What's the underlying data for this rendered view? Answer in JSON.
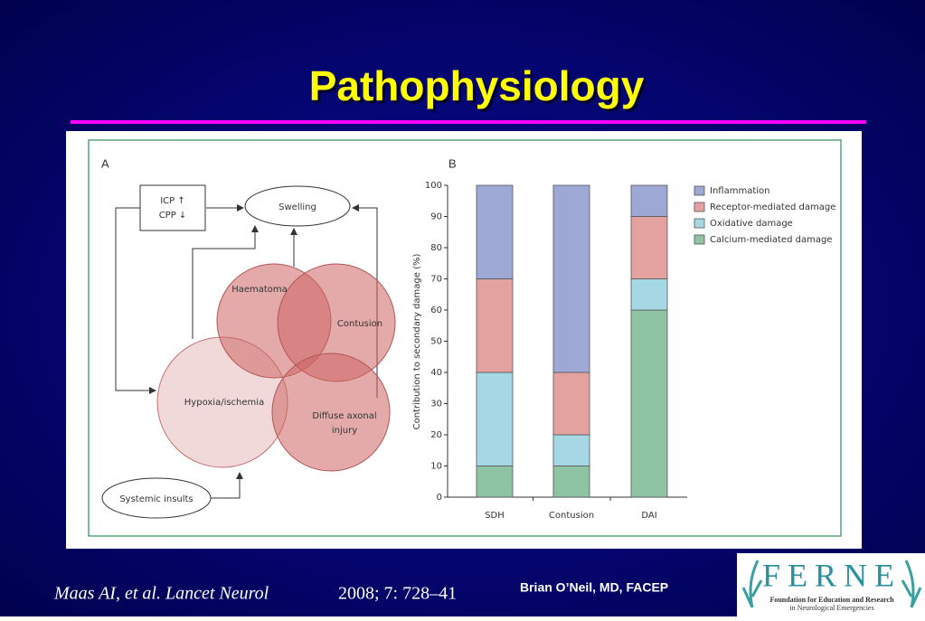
{
  "slide_title": "Pathophysiology",
  "panel_a": {
    "label": "A",
    "nodes": [
      {
        "lines": [
          "ICP ↑",
          "CPP ↓"
        ]
      },
      {
        "lines": [
          "Swelling"
        ]
      },
      {
        "lines": [
          "Haematoma"
        ]
      },
      {
        "lines": [
          "Contusion"
        ]
      },
      {
        "lines": [
          "Hypoxia/ischemia"
        ]
      },
      {
        "lines": [
          "Diffuse axonal",
          "injury"
        ]
      },
      {
        "lines": [
          "Systemic insults"
        ]
      }
    ]
  },
  "chart_data": {
    "type": "stacked-bar",
    "title": "B",
    "y_label": "Contribution to secondary damage (%)",
    "categories": [
      "SDH",
      "Contusion",
      "DAI"
    ],
    "series": [
      {
        "name": "Inflammation",
        "color": "#9ea8d5",
        "values": [
          30,
          60,
          10
        ]
      },
      {
        "name": "Receptor-mediated damage",
        "color": "#e3a29f",
        "values": [
          30,
          20,
          20
        ]
      },
      {
        "name": "Oxidative damage",
        "color": "#a5d7e5",
        "values": [
          30,
          10,
          10
        ]
      },
      {
        "name": "Calcium-mediated damage",
        "color": "#8ec3a3",
        "values": [
          10,
          10,
          60
        ]
      }
    ],
    "ylim": [
      0,
      100
    ],
    "yticks": [
      0,
      10,
      20,
      30,
      40,
      50,
      60,
      70,
      80,
      90,
      100
    ],
    "legend": "top-right"
  },
  "citation": {
    "authors": "Maas AI, et al. Lancet Neurol",
    "details": "2008; 7: 728–41"
  },
  "presenter": "Brian O’Neil, MD, FACEP",
  "logo": {
    "name": "FERNE",
    "line1": "Foundation for Education and Research",
    "line2": "in Neurological Emergencies"
  }
}
